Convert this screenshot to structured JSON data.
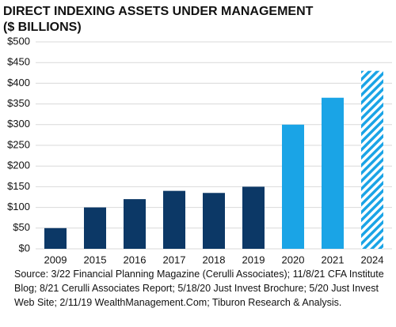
{
  "chart_data": {
    "type": "bar",
    "title": "DIRECT INDEXING ASSETS UNDER MANAGEMENT",
    "subtitle": "($ BILLIONS)",
    "categories": [
      "2009",
      "2015",
      "2016",
      "2017",
      "2018",
      "2019",
      "2020",
      "2021",
      "2024"
    ],
    "values": [
      50,
      100,
      120,
      140,
      135,
      150,
      300,
      365,
      430
    ],
    "colors": [
      "#0c3866",
      "#0c3866",
      "#0c3866",
      "#0c3866",
      "#0c3866",
      "#0c3866",
      "#1aa4e6",
      "#1aa4e6",
      "#1aa4e6"
    ],
    "hatched": [
      false,
      false,
      false,
      false,
      false,
      false,
      false,
      false,
      true
    ],
    "ylim": [
      0,
      500
    ],
    "yticks": [
      {
        "value": 0,
        "label": "$0"
      },
      {
        "value": 50,
        "label": "$50"
      },
      {
        "value": 100,
        "label": "$100"
      },
      {
        "value": 150,
        "label": "$150"
      },
      {
        "value": 200,
        "label": "$200"
      },
      {
        "value": 250,
        "label": "$250"
      },
      {
        "value": 300,
        "label": "$300"
      },
      {
        "value": 350,
        "label": "$350"
      },
      {
        "value": 400,
        "label": "$400"
      },
      {
        "value": 450,
        "label": "$450"
      },
      {
        "value": 500,
        "label": "$500"
      }
    ],
    "grid": true,
    "source": "Source: 3/22 Financial Planning Magazine (Cerulli Associates); 11/8/21 CFA Institute Blog; 8/21 Cerulli Associates Report; 5/18/20 Just Invest Brochure; 5/20 Just Invest Web Site; 2/11/19 WealthManagement.Com; Tiburon Research & Analysis."
  }
}
